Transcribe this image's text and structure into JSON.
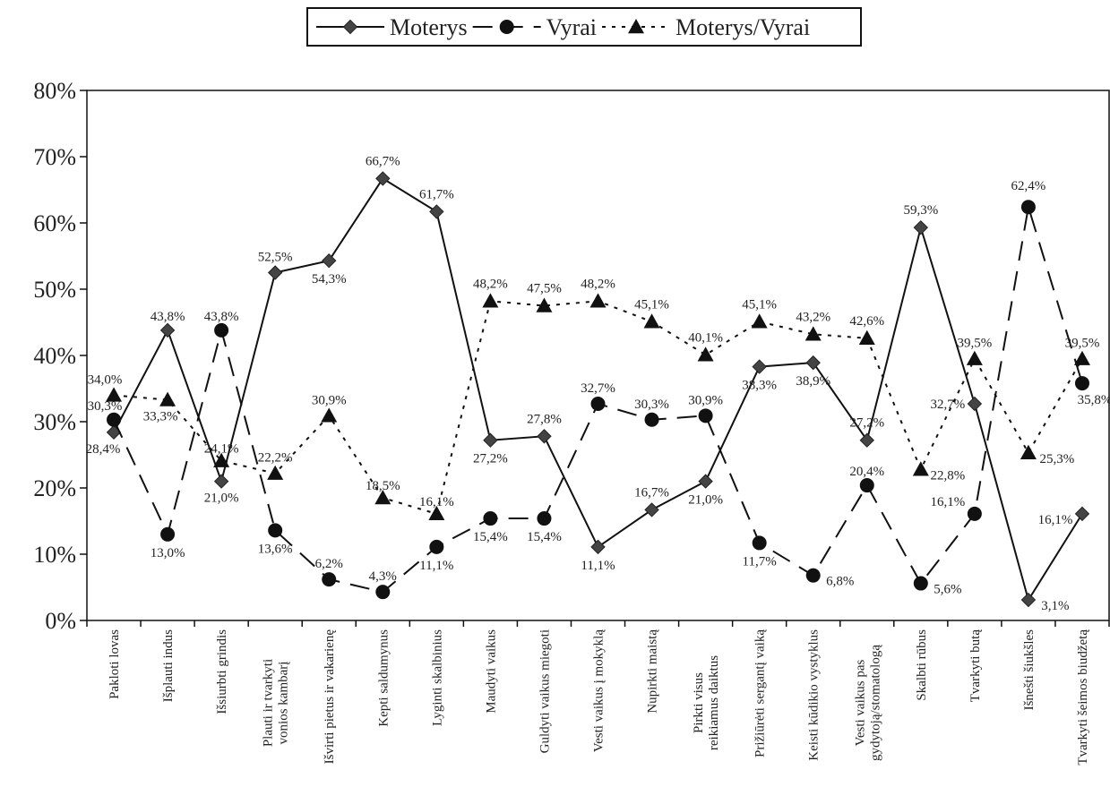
{
  "chart_data": {
    "type": "line",
    "title": "",
    "xlabel": "",
    "ylabel": "",
    "ylim": [
      0,
      80
    ],
    "yticks": [
      "0%",
      "10%",
      "20%",
      "30%",
      "40%",
      "50%",
      "60%",
      "70%",
      "80%"
    ],
    "grid": false,
    "legend_position": "top-center",
    "categories": [
      "Pakloti lovas",
      "Išplauti indus",
      "Išsiurbti grindis",
      "Plauti ir tvarkyti vonios kambarį",
      "Išvirti pietus ir vakarienę",
      "Kepti saldumynus",
      "Lyginti skalbinius",
      "Maudyti vaikus",
      "Guldyti vaikus miegoti",
      "Vesti vaikus į mokyklą",
      "Nupirkti maistą",
      "Pirkti visus reikiamus daiktus",
      "Prižiūrėti sergantį vaiką",
      "Keisti kūdikio vystyklus",
      "Vesti vaikus pas gydytoją/stomatologą",
      "Skalbti rūbus",
      "Tvarkyti butą",
      "Išnešti šiukšles",
      "Tvarkyti šeimos biudžetą"
    ],
    "series": [
      {
        "name": "Moterys",
        "marker": "diamond",
        "dash": "solid",
        "color": "#333333",
        "values": [
          28.4,
          43.8,
          21.0,
          52.5,
          54.3,
          66.7,
          61.7,
          27.2,
          27.8,
          11.1,
          16.7,
          21.0,
          38.3,
          38.9,
          27.2,
          59.3,
          32.7,
          3.1,
          16.1
        ],
        "labels": [
          "28,4%",
          "43,8%",
          "21,0%",
          "52,5%",
          "54,3%",
          "66,7%",
          "61,7%",
          "27,2%",
          "27,8%",
          "11,1%",
          "16,7%",
          "21,0%",
          "38,3%",
          "38,9%",
          "27,2%",
          "59,3%",
          "32,7%",
          "3,1%",
          "16,1%"
        ]
      },
      {
        "name": "Vyrai",
        "marker": "circle",
        "dash": "long-dash",
        "color": "#222222",
        "values": [
          30.3,
          13.0,
          43.8,
          13.6,
          6.2,
          4.3,
          11.1,
          15.4,
          15.4,
          32.7,
          30.3,
          30.9,
          11.7,
          6.8,
          20.4,
          5.6,
          16.1,
          62.4,
          35.8
        ],
        "labels": [
          "30,3%",
          "13,0%",
          "43,8%",
          "13,6%",
          "6,2%",
          "4,3%",
          "11,1%",
          "15,4%",
          "15,4%",
          "32,7%",
          "30,3%",
          "30,9%",
          "11,7%",
          "6,8%",
          "20,4%",
          "5,6%",
          "16,1%",
          "62,4%",
          "35,8%"
        ]
      },
      {
        "name": "Moterys/Vyrai",
        "marker": "triangle",
        "dash": "dotted",
        "color": "#222222",
        "values": [
          34.0,
          33.3,
          24.1,
          22.2,
          30.9,
          18.5,
          16.1,
          48.2,
          47.5,
          48.2,
          45.1,
          40.1,
          45.1,
          43.2,
          42.6,
          22.8,
          39.5,
          25.3,
          39.5
        ],
        "labels": [
          "34,0%",
          "33,3%",
          "24,1%",
          "22,2%",
          "30,9%",
          "18,5%",
          "16,1%",
          "48,2%",
          "47,5%",
          "48,2%",
          "45,1%",
          "40,1%",
          "45,1%",
          "43,2%",
          "42,6%",
          "22,8%",
          "39,5%",
          "25,3%",
          "39,5%"
        ]
      }
    ]
  }
}
